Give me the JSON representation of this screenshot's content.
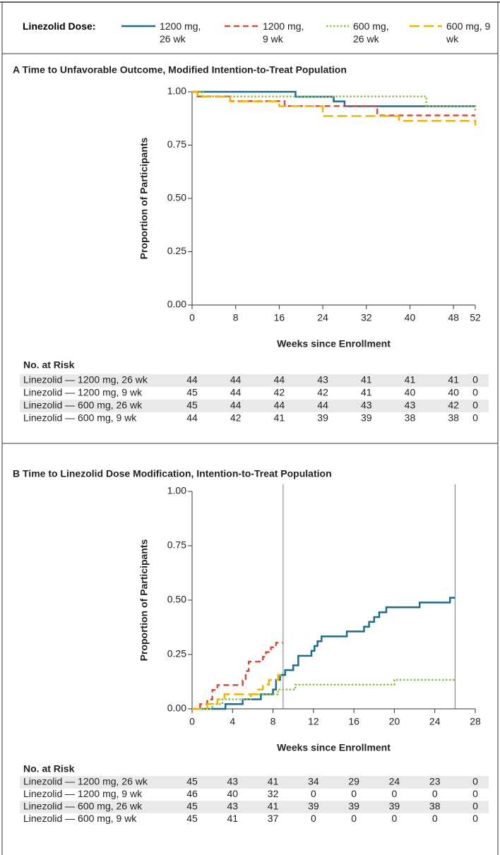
{
  "legend_title": "Linezolid Dose:",
  "chart_data": [
    {
      "type": "line",
      "step": true,
      "title": "A  Time to Unfavorable Outcome, Modified Intention-to-Treat Population",
      "x_label": "Weeks since Enrollment",
      "y_label": "Proportion of Participants",
      "xlim": [
        0,
        52
      ],
      "ylim": [
        0,
        1
      ],
      "xticks": [
        0,
        8,
        16,
        24,
        32,
        40,
        48,
        52
      ],
      "yticks": [
        {
          "value": 0,
          "label": "0.00"
        },
        {
          "value": 0.25,
          "label": "0.25"
        },
        {
          "value": 0.5,
          "label": "0.50"
        },
        {
          "value": 0.75,
          "label": "0.75"
        },
        {
          "value": 1,
          "label": "1.00"
        }
      ],
      "series": [
        {
          "name": "1200 mg, 26 wk",
          "color": "#1f6b8c",
          "dash": "none",
          "x": [
            0,
            19,
            26,
            28,
            52
          ],
          "values": [
            1,
            0.977,
            0.955,
            0.932,
            0.932
          ]
        },
        {
          "name": "1200 mg, 9 wk",
          "color": "#d94a38",
          "dash": "8,5",
          "x": [
            0,
            1,
            7,
            17,
            34,
            52
          ],
          "values": [
            1,
            0.978,
            0.956,
            0.933,
            0.889,
            0.889
          ]
        },
        {
          "name": "600 mg, 26 wk",
          "color": "#8cc04b",
          "dash": "2.5,2.5",
          "x": [
            0,
            2,
            43,
            52
          ],
          "values": [
            1,
            0.978,
            0.933,
            0.911
          ]
        },
        {
          "name": "600 mg, 9 wk",
          "color": "#f0b400",
          "dash": "14,6",
          "x": [
            0,
            1,
            7,
            16,
            24,
            38,
            52
          ],
          "values": [
            1,
            0.977,
            0.955,
            0.932,
            0.886,
            0.864,
            0.841
          ]
        }
      ],
      "risk_table": {
        "title": "No. at Risk",
        "rows": [
          {
            "label": "Linezolid — 1200 mg, 26 wk",
            "values": [
              44,
              44,
              44,
              43,
              41,
              41,
              41,
              0
            ]
          },
          {
            "label": "Linezolid — 1200 mg, 9 wk",
            "values": [
              45,
              44,
              42,
              42,
              41,
              40,
              40,
              0
            ]
          },
          {
            "label": "Linezolid — 600 mg, 26 wk",
            "values": [
              45,
              44,
              44,
              44,
              43,
              43,
              42,
              0
            ]
          },
          {
            "label": "Linezolid — 600 mg, 9 wk",
            "values": [
              44,
              42,
              41,
              39,
              39,
              38,
              38,
              0
            ]
          }
        ]
      }
    },
    {
      "type": "line",
      "step": true,
      "title": "B  Time to Linezolid Dose Modification, Intention-to-Treat Population",
      "x_label": "Weeks since Enrollment",
      "y_label": "Proportion of Participants",
      "xlim": [
        0,
        28
      ],
      "ylim": [
        0,
        1
      ],
      "xticks": [
        0,
        4,
        8,
        12,
        16,
        20,
        24,
        28
      ],
      "yticks": [
        {
          "value": 0,
          "label": "0.00"
        },
        {
          "value": 0.25,
          "label": "0.25"
        },
        {
          "value": 0.5,
          "label": "0.50"
        },
        {
          "value": 0.75,
          "label": "0.75"
        },
        {
          "value": 1,
          "label": "1.00"
        }
      ],
      "vlines": [
        9,
        26
      ],
      "series": [
        {
          "color": "#1f6b8c",
          "dash": "none",
          "x": [
            0,
            3.3,
            5,
            6.8,
            8,
            8.3,
            8.7,
            9.2,
            10,
            10.5,
            11.8,
            12.1,
            12.4,
            12.8,
            15.3,
            17,
            17.5,
            18,
            18.5,
            19.2,
            22.5,
            25.5,
            26
          ],
          "values": [
            0,
            0.022,
            0.044,
            0.067,
            0.089,
            0.133,
            0.156,
            0.178,
            0.2,
            0.244,
            0.267,
            0.289,
            0.311,
            0.333,
            0.356,
            0.378,
            0.4,
            0.422,
            0.444,
            0.467,
            0.489,
            0.511,
            0.511
          ]
        },
        {
          "color": "#d94a38",
          "dash": "8,5",
          "x": [
            0,
            0.8,
            1.5,
            2,
            2.5,
            5,
            5.3,
            5.6,
            7,
            7.3,
            7.8,
            8.3,
            9
          ],
          "values": [
            0,
            0.022,
            0.043,
            0.087,
            0.109,
            0.13,
            0.174,
            0.217,
            0.239,
            0.261,
            0.283,
            0.304,
            0.304
          ]
        },
        {
          "color": "#8cc04b",
          "dash": "2.5,2.5",
          "x": [
            0,
            2,
            3,
            5.8,
            8.5,
            10.2,
            20,
            26
          ],
          "values": [
            0,
            0.022,
            0.044,
            0.067,
            0.089,
            0.111,
            0.133,
            0.133
          ]
        },
        {
          "color": "#f0b400",
          "dash": "14,6",
          "x": [
            0,
            1.5,
            2.5,
            3.2,
            6.5,
            7,
            7.6,
            8.5,
            9
          ],
          "values": [
            0,
            0.022,
            0.044,
            0.067,
            0.089,
            0.111,
            0.133,
            0.156,
            0.156
          ]
        }
      ],
      "risk_table": {
        "title": "No. at Risk",
        "rows": [
          {
            "label": "Linezolid — 1200 mg, 26 wk",
            "values": [
              45,
              43,
              41,
              34,
              29,
              24,
              23,
              0
            ]
          },
          {
            "label": "Linezolid — 1200 mg, 9 wk",
            "values": [
              46,
              40,
              32,
              0,
              0,
              0,
              0,
              0
            ]
          },
          {
            "label": "Linezolid — 600 mg, 26 wk",
            "values": [
              45,
              43,
              41,
              39,
              39,
              39,
              38,
              0
            ]
          },
          {
            "label": "Linezolid — 600 mg, 9 wk",
            "values": [
              45,
              41,
              37,
              0,
              0,
              0,
              0,
              0
            ]
          }
        ]
      }
    }
  ]
}
